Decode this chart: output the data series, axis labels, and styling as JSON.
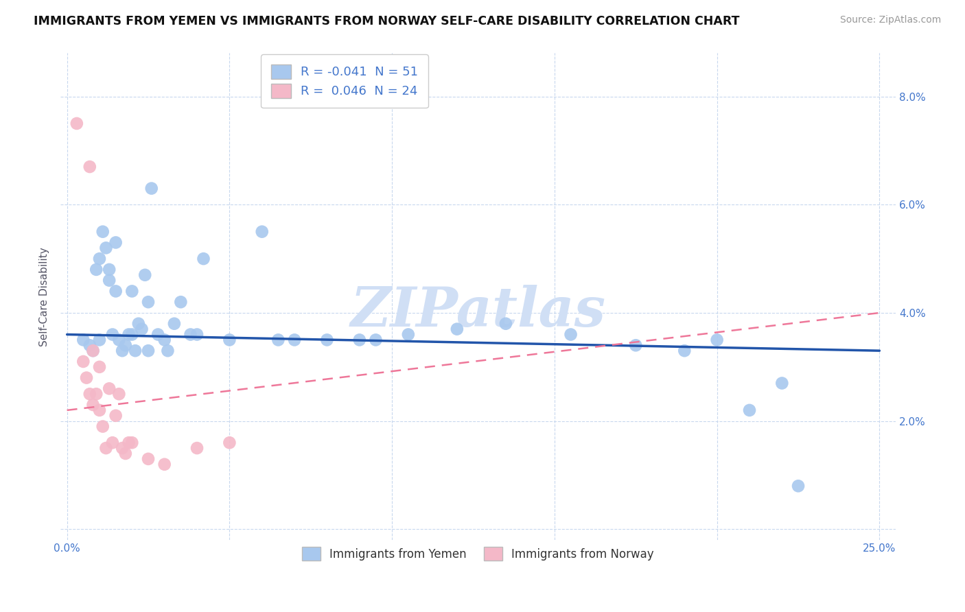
{
  "title": "IMMIGRANTS FROM YEMEN VS IMMIGRANTS FROM NORWAY SELF-CARE DISABILITY CORRELATION CHART",
  "source": "Source: ZipAtlas.com",
  "ylabel": "Self-Care Disability",
  "x_ticks": [
    0.0,
    0.05,
    0.1,
    0.15,
    0.2,
    0.25
  ],
  "x_tick_labels": [
    "0.0%",
    "",
    "",
    "",
    "",
    "25.0%"
  ],
  "y_ticks": [
    0.0,
    0.02,
    0.04,
    0.06,
    0.08
  ],
  "y_tick_labels_right": [
    "",
    "2.0%",
    "4.0%",
    "6.0%",
    "8.0%"
  ],
  "xlim": [
    -0.002,
    0.255
  ],
  "ylim": [
    -0.002,
    0.088
  ],
  "legend_r_blue": "-0.041",
  "legend_n_blue": "51",
  "legend_r_pink": "0.046",
  "legend_n_pink": "24",
  "legend_label_blue": "Immigrants from Yemen",
  "legend_label_pink": "Immigrants from Norway",
  "blue_color": "#A8C8EE",
  "pink_color": "#F4B8C8",
  "trendline_blue_color": "#2255AA",
  "trendline_pink_color": "#EE7799",
  "watermark": "ZIPatlas",
  "watermark_color": "#D0DFF5",
  "blue_x": [
    0.005,
    0.007,
    0.008,
    0.009,
    0.01,
    0.01,
    0.011,
    0.012,
    0.013,
    0.013,
    0.014,
    0.015,
    0.015,
    0.016,
    0.017,
    0.018,
    0.019,
    0.02,
    0.02,
    0.021,
    0.022,
    0.023,
    0.024,
    0.025,
    0.025,
    0.026,
    0.028,
    0.03,
    0.031,
    0.033,
    0.035,
    0.038,
    0.04,
    0.042,
    0.05,
    0.06,
    0.065,
    0.07,
    0.08,
    0.09,
    0.095,
    0.105,
    0.12,
    0.135,
    0.155,
    0.175,
    0.19,
    0.2,
    0.21,
    0.22,
    0.225
  ],
  "blue_y": [
    0.035,
    0.034,
    0.033,
    0.048,
    0.05,
    0.035,
    0.055,
    0.052,
    0.048,
    0.046,
    0.036,
    0.053,
    0.044,
    0.035,
    0.033,
    0.034,
    0.036,
    0.044,
    0.036,
    0.033,
    0.038,
    0.037,
    0.047,
    0.042,
    0.033,
    0.063,
    0.036,
    0.035,
    0.033,
    0.038,
    0.042,
    0.036,
    0.036,
    0.05,
    0.035,
    0.055,
    0.035,
    0.035,
    0.035,
    0.035,
    0.035,
    0.036,
    0.037,
    0.038,
    0.036,
    0.034,
    0.033,
    0.035,
    0.022,
    0.027,
    0.008
  ],
  "pink_x": [
    0.003,
    0.005,
    0.006,
    0.007,
    0.007,
    0.008,
    0.008,
    0.009,
    0.01,
    0.01,
    0.011,
    0.012,
    0.013,
    0.014,
    0.015,
    0.016,
    0.017,
    0.018,
    0.019,
    0.02,
    0.025,
    0.03,
    0.04,
    0.05
  ],
  "pink_y": [
    0.075,
    0.031,
    0.028,
    0.067,
    0.025,
    0.023,
    0.033,
    0.025,
    0.022,
    0.03,
    0.019,
    0.015,
    0.026,
    0.016,
    0.021,
    0.025,
    0.015,
    0.014,
    0.016,
    0.016,
    0.013,
    0.012,
    0.015,
    0.016
  ],
  "blue_trend_x0": 0.0,
  "blue_trend_x1": 0.25,
  "blue_trend_y0": 0.036,
  "blue_trend_y1": 0.033,
  "pink_trend_x0": 0.0,
  "pink_trend_x1": 0.25,
  "pink_trend_y0": 0.022,
  "pink_trend_y1": 0.04
}
